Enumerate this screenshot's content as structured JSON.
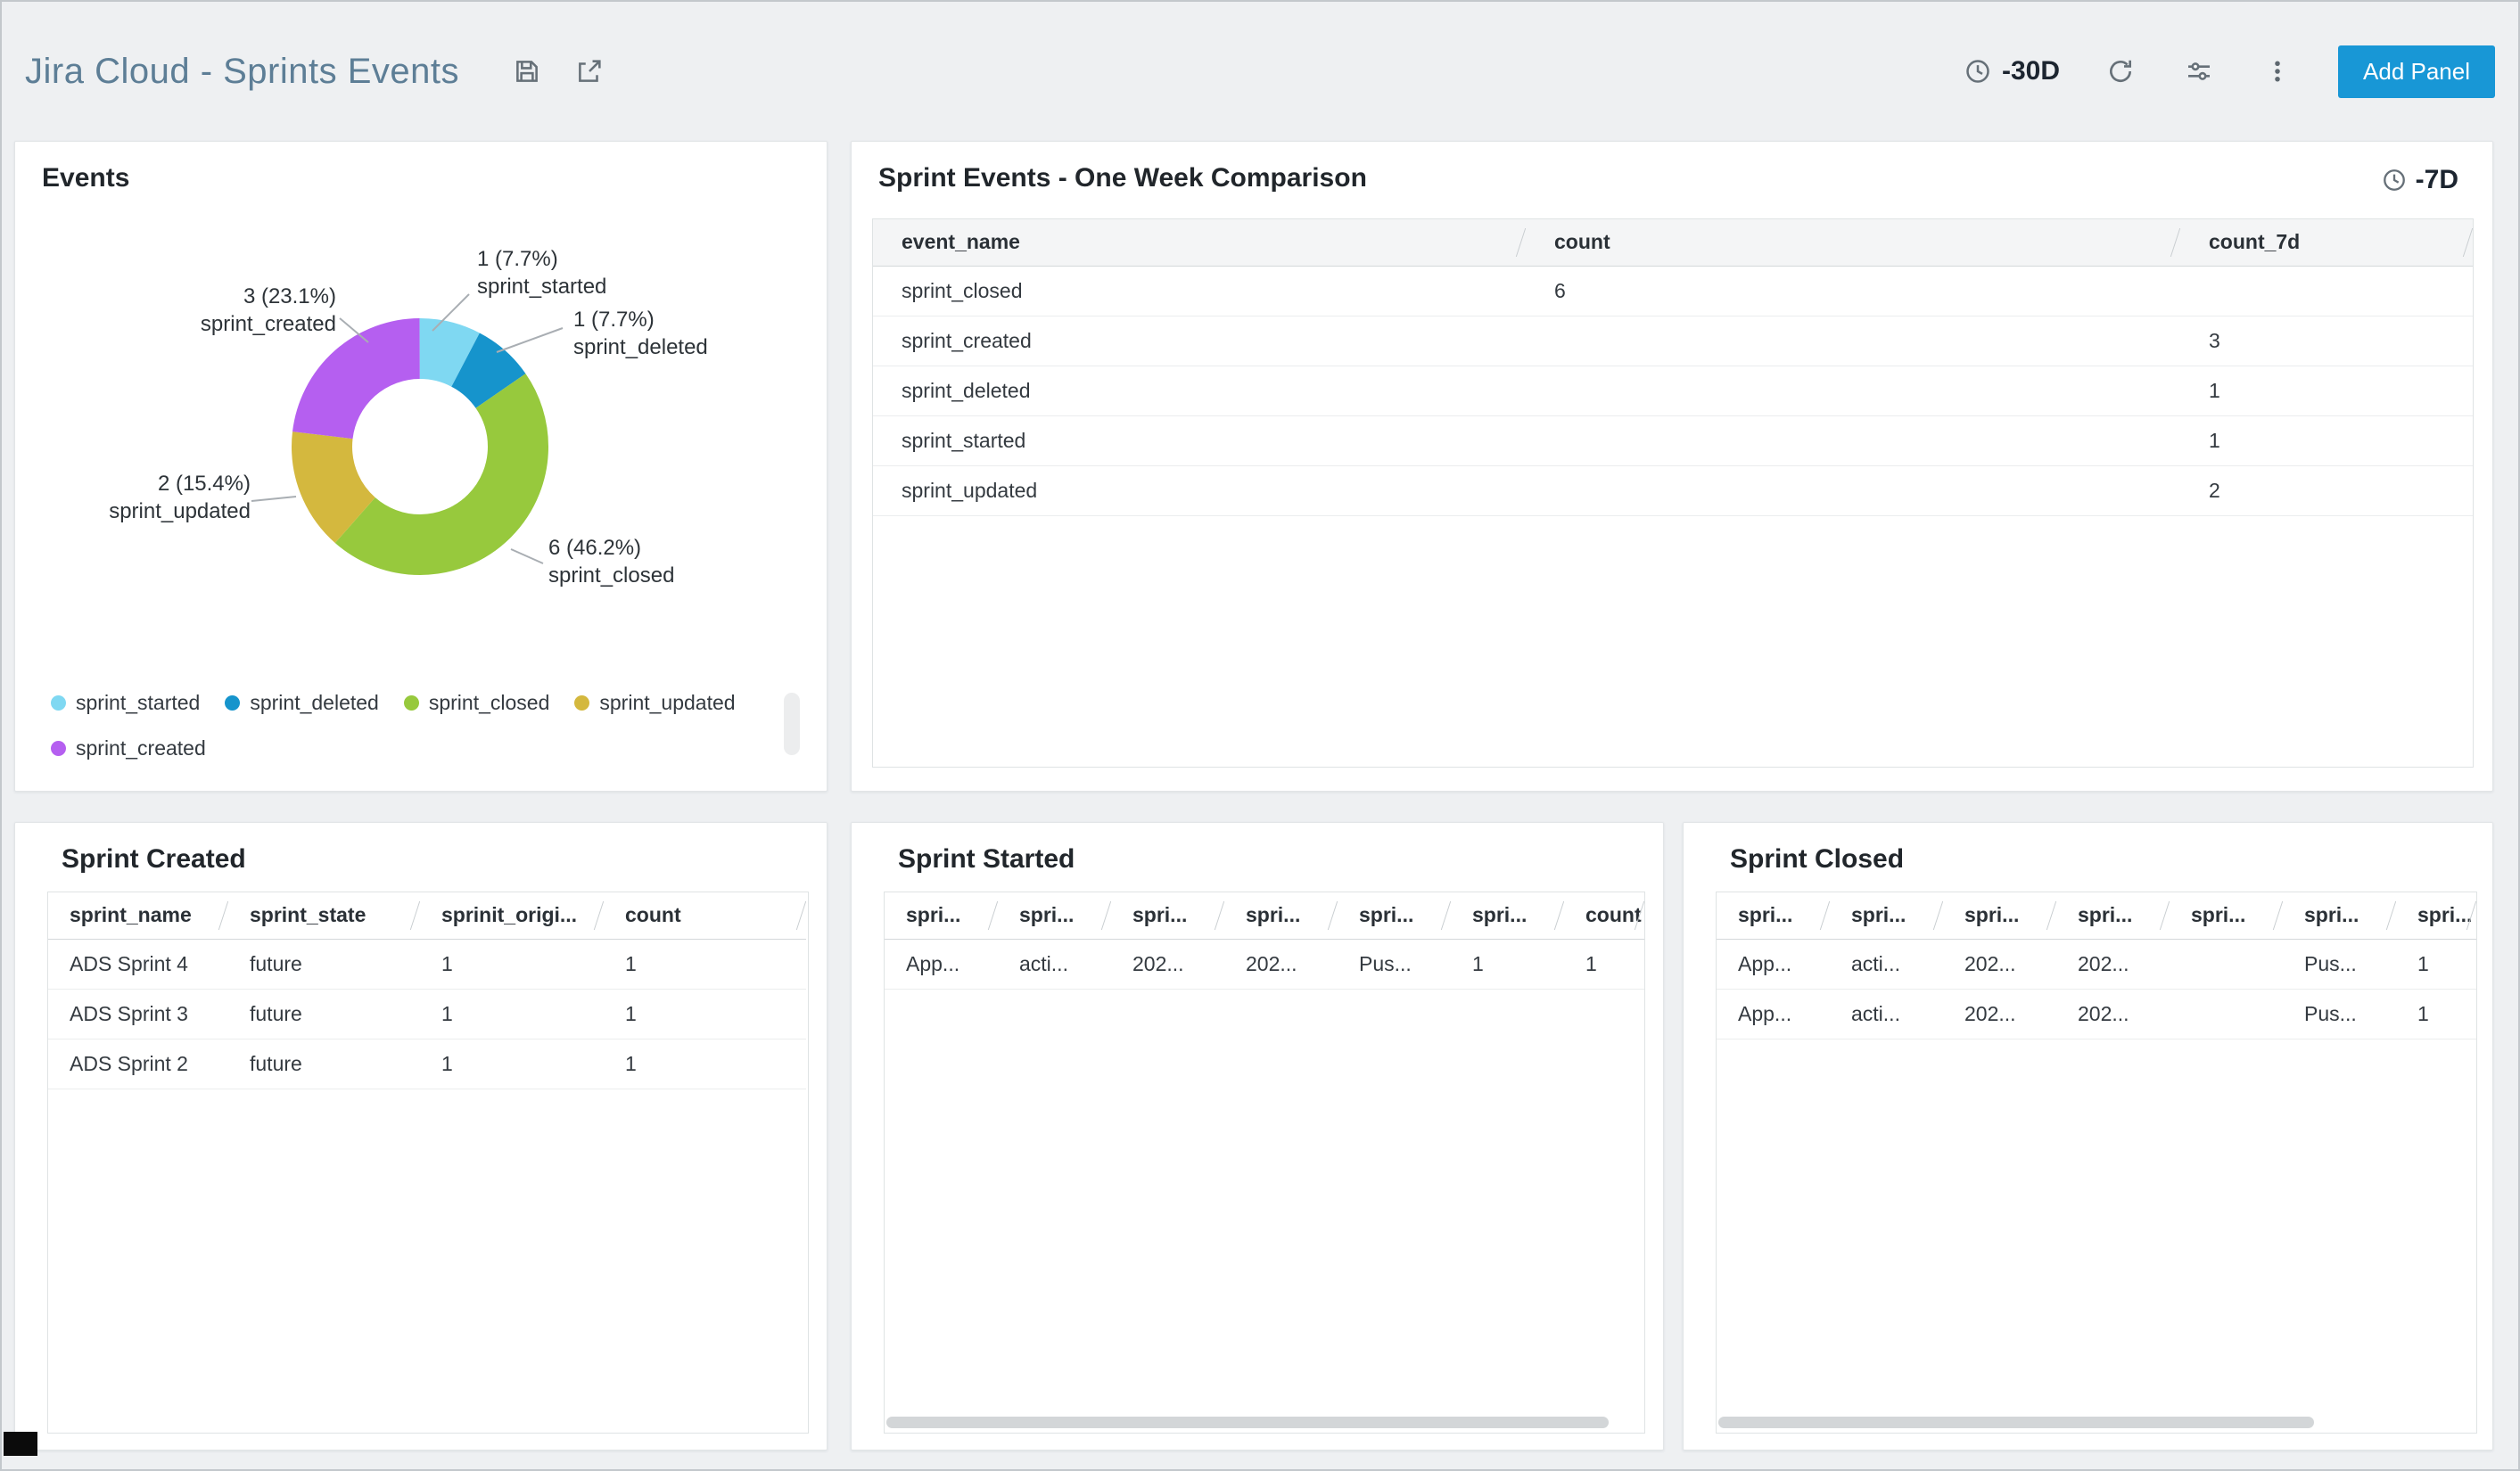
{
  "header": {
    "title": "Jira Cloud - Sprints Events",
    "time_range": "-30D",
    "add_panel_label": "Add Panel",
    "accent_color": "#1897d6",
    "icons": [
      "save-icon",
      "share-icon",
      "clock-icon",
      "refresh-icon",
      "sliders-icon",
      "kebab-menu-icon"
    ]
  },
  "panels": {
    "events": {
      "title": "Events",
      "callouts": {
        "started": {
          "value": "1 (7.7%)",
          "name": "sprint_started"
        },
        "deleted": {
          "value": "1 (7.7%)",
          "name": "sprint_deleted"
        },
        "created": {
          "value": "3 (23.1%)",
          "name": "sprint_created"
        },
        "updated": {
          "value": "2 (15.4%)",
          "name": "sprint_updated"
        },
        "closed": {
          "value": "6 (46.2%)",
          "name": "sprint_closed"
        }
      },
      "legend": [
        {
          "label": "sprint_started",
          "color": "#7fd8f2"
        },
        {
          "label": "sprint_deleted",
          "color": "#1694cc"
        },
        {
          "label": "sprint_closed",
          "color": "#97c93d"
        },
        {
          "label": "sprint_updated",
          "color": "#d4b83e"
        },
        {
          "label": "sprint_created",
          "color": "#b55ff0"
        }
      ]
    },
    "comparison": {
      "title": "Sprint Events - One Week Comparison",
      "time_range": "-7D",
      "columns": [
        "event_name",
        "count",
        "count_7d"
      ],
      "rows": [
        [
          "sprint_closed",
          "6",
          ""
        ],
        [
          "sprint_created",
          "",
          "3"
        ],
        [
          "sprint_deleted",
          "",
          "1"
        ],
        [
          "sprint_started",
          "",
          "1"
        ],
        [
          "sprint_updated",
          "",
          "2"
        ]
      ]
    },
    "sprint_created": {
      "title": "Sprint Created",
      "columns": [
        "sprint_name",
        "sprint_state",
        "sprinit_origi...",
        "count"
      ],
      "rows": [
        [
          "ADS Sprint 4",
          "future",
          "1",
          "1"
        ],
        [
          "ADS Sprint 3",
          "future",
          "1",
          "1"
        ],
        [
          "ADS Sprint 2",
          "future",
          "1",
          "1"
        ]
      ]
    },
    "sprint_started": {
      "title": "Sprint Started",
      "columns": [
        "spri...",
        "spri...",
        "spri...",
        "spri...",
        "spri...",
        "spri...",
        "count"
      ],
      "rows": [
        [
          "App...",
          "acti...",
          "202...",
          "202...",
          "Pus...",
          "1",
          "1"
        ]
      ]
    },
    "sprint_closed": {
      "title": "Sprint Closed",
      "columns": [
        "spri...",
        "spri...",
        "spri...",
        "spri...",
        "spri...",
        "spri...",
        "spri..."
      ],
      "rows": [
        [
          "App...",
          "acti...",
          "202...",
          "202...",
          "",
          "Pus...",
          "1"
        ],
        [
          "App...",
          "acti...",
          "202...",
          "202...",
          "",
          "Pus...",
          "1"
        ]
      ]
    }
  },
  "chart_data": {
    "type": "pie",
    "subtype": "donut",
    "title": "Events",
    "categories": [
      "sprint_started",
      "sprint_deleted",
      "sprint_closed",
      "sprint_updated",
      "sprint_created"
    ],
    "values": [
      1,
      1,
      6,
      2,
      3
    ],
    "percentages": [
      7.7,
      7.7,
      46.2,
      15.4,
      23.1
    ],
    "colors": [
      "#7fd8f2",
      "#1694cc",
      "#97c93d",
      "#d4b83e",
      "#b55ff0"
    ],
    "legend_position": "bottom"
  }
}
